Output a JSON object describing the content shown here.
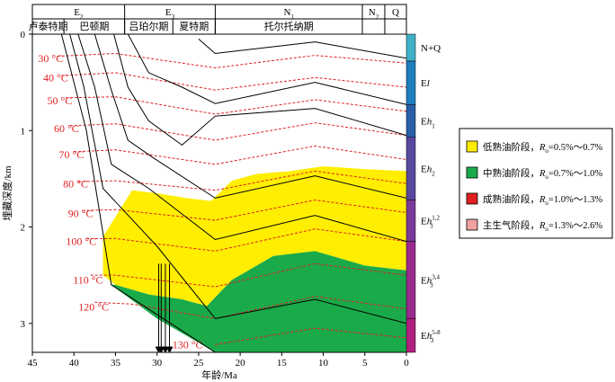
{
  "chart_data": {
    "type": "burial-history",
    "xlabel": "年龄/Ma",
    "ylabel": "埋藏深度/km",
    "xlim": [
      45,
      0
    ],
    "ylim": [
      0,
      3.3
    ],
    "x_ticks": [
      "45",
      "40",
      "35",
      "30",
      "25",
      "20",
      "15",
      "10",
      "5",
      "0"
    ],
    "y_ticks": [
      "0",
      "1",
      "2",
      "3"
    ],
    "epochs": [
      {
        "label": "E2",
        "base": "E",
        "sub": "2",
        "from": 45,
        "to": 33.9
      },
      {
        "label": "E3",
        "base": "E",
        "sub": "3",
        "from": 33.9,
        "to": 23.0
      },
      {
        "label": "N1",
        "base": "N",
        "sub": "1",
        "from": 23.0,
        "to": 5.3
      },
      {
        "label": "N2",
        "base": "N",
        "sub": "2",
        "from": 5.3,
        "to": 2.6
      },
      {
        "label": "Q",
        "base": "Q",
        "sub": "",
        "from": 2.6,
        "to": 0
      }
    ],
    "stages": [
      {
        "label": "卢泰特期",
        "from": 45,
        "to": 41.2
      },
      {
        "label": "巴顿期",
        "from": 41.2,
        "to": 33.9
      },
      {
        "label": "吕珀尔期",
        "from": 33.9,
        "to": 28.1
      },
      {
        "label": "夏特期",
        "from": 28.1,
        "to": 23.0
      },
      {
        "label": "托尔托纳期",
        "from": 23.0,
        "to": 5.3
      }
    ],
    "burial_curves": [
      [
        [
          41.5,
          0
        ],
        [
          38.5,
          1.0
        ],
        [
          35.5,
          2.6
        ],
        [
          23,
          3.3
        ]
      ],
      [
        [
          40.5,
          0
        ],
        [
          38.8,
          0.55
        ],
        [
          36.5,
          1.6
        ],
        [
          30,
          2.2
        ],
        [
          23,
          2.95
        ],
        [
          11,
          2.75
        ],
        [
          0,
          3.0
        ]
      ],
      [
        [
          39.5,
          0
        ],
        [
          37.5,
          0.55
        ],
        [
          35.5,
          1.35
        ],
        [
          31,
          1.6
        ],
        [
          23,
          2.13
        ],
        [
          11,
          1.88
        ],
        [
          0,
          2.15
        ]
      ],
      [
        [
          37.5,
          0
        ],
        [
          35.5,
          0.58
        ],
        [
          33.5,
          1.1
        ],
        [
          30.5,
          1.28
        ],
        [
          23,
          1.7
        ],
        [
          11,
          1.47
        ],
        [
          0,
          1.7
        ]
      ],
      [
        [
          35.2,
          0
        ],
        [
          33.5,
          0.55
        ],
        [
          31,
          0.9
        ],
        [
          27,
          1.15
        ],
        [
          23,
          0.85
        ],
        [
          11,
          0.77
        ],
        [
          0,
          1.05
        ]
      ],
      [
        [
          33.5,
          0
        ],
        [
          31,
          0.4
        ],
        [
          27,
          0.55
        ],
        [
          23,
          0.72
        ],
        [
          11,
          0.5
        ],
        [
          0,
          0.73
        ]
      ],
      [
        [
          25,
          0.05
        ],
        [
          23,
          0.2
        ],
        [
          11,
          0.08
        ],
        [
          0,
          0.25
        ]
      ]
    ],
    "isotherms": [
      {
        "label": "30 °C",
        "points": [
          [
            42,
            0.23
          ],
          [
            35,
            0.2
          ],
          [
            23,
            0.35
          ],
          [
            11,
            0.22
          ],
          [
            0,
            0.3
          ]
        ]
      },
      {
        "label": "40 °C",
        "points": [
          [
            41.5,
            0.43
          ],
          [
            35,
            0.4
          ],
          [
            23,
            0.58
          ],
          [
            11,
            0.45
          ],
          [
            0,
            0.55
          ]
        ]
      },
      {
        "label": "50 °C",
        "points": [
          [
            41,
            0.66
          ],
          [
            35,
            0.65
          ],
          [
            23,
            0.83
          ],
          [
            11,
            0.68
          ],
          [
            0,
            0.8
          ]
        ]
      },
      {
        "label": "60 °C",
        "points": [
          [
            40.5,
            0.95
          ],
          [
            35,
            0.93
          ],
          [
            23,
            1.1
          ],
          [
            11,
            0.92
          ],
          [
            0,
            1.05
          ]
        ]
      },
      {
        "label": "70 °C",
        "points": [
          [
            40,
            1.22
          ],
          [
            35,
            1.2
          ],
          [
            23,
            1.35
          ],
          [
            11,
            1.16
          ],
          [
            0,
            1.3
          ]
        ]
      },
      {
        "label": "80 °C",
        "points": [
          [
            39.5,
            1.53
          ],
          [
            35,
            1.52
          ],
          [
            23,
            1.62
          ],
          [
            11,
            1.42
          ],
          [
            0,
            1.55
          ]
        ]
      },
      {
        "label": "90 °C",
        "points": [
          [
            39,
            1.83
          ],
          [
            35,
            1.82
          ],
          [
            23,
            1.93
          ],
          [
            11,
            1.72
          ],
          [
            0,
            1.85
          ]
        ]
      },
      {
        "label": "100 °C",
        "points": [
          [
            38.5,
            2.12
          ],
          [
            35,
            2.12
          ],
          [
            23,
            2.25
          ],
          [
            11,
            2.02
          ],
          [
            0,
            2.15
          ]
        ]
      },
      {
        "label": "110 °C",
        "points": [
          [
            38,
            2.5
          ],
          [
            35,
            2.5
          ],
          [
            23,
            2.62
          ],
          [
            11,
            2.38
          ],
          [
            0,
            2.5
          ]
        ]
      },
      {
        "label": "120 °C",
        "points": [
          [
            37.5,
            2.78
          ],
          [
            33,
            2.8
          ],
          [
            23,
            2.95
          ],
          [
            11,
            2.72
          ],
          [
            0,
            2.85
          ]
        ]
      },
      {
        "label": "130 °C",
        "points": [
          [
            23,
            3.22
          ],
          [
            11,
            3.05
          ],
          [
            0,
            3.15
          ]
        ]
      }
    ],
    "zones": [
      {
        "label": "低熟油阶段",
        "ro": "0.5%～0.7%",
        "color": "#ffee00"
      },
      {
        "label": "中熟油阶段",
        "ro": "0.7%～1.0%",
        "color": "#1aaa4a"
      },
      {
        "label": "成熟油阶段",
        "ro": "1.0%～1.3%",
        "color": "#e02020"
      },
      {
        "label": "主生气阶段",
        "ro": "1.3%～2.6%",
        "color": "#f0a0a0"
      }
    ],
    "ro_symbol": "R",
    "ro_sub": "o",
    "ro_eq": "=",
    "strat_column": [
      {
        "base": "N+Q",
        "sub": "",
        "sup": "",
        "from": 0,
        "to": 0.28,
        "color": "#3fb0c8"
      },
      {
        "base": "E",
        "italic": "l",
        "sub": "",
        "sup": "",
        "from": 0.28,
        "to": 0.73,
        "color": "#1e7fbf"
      },
      {
        "base": "E",
        "italic": "h",
        "sub": "1",
        "sup": "",
        "from": 0.73,
        "to": 1.07,
        "color": "#2a5fa8"
      },
      {
        "base": "E",
        "italic": "h",
        "sub": "2",
        "sup": "",
        "from": 1.07,
        "to": 1.72,
        "color": "#5848a0"
      },
      {
        "base": "E",
        "italic": "h",
        "sub": "3",
        "sup": "1,2",
        "from": 1.72,
        "to": 2.15,
        "color": "#7a3a9a"
      },
      {
        "base": "E",
        "italic": "h",
        "sub": "3",
        "sup": "3,4",
        "from": 2.15,
        "to": 2.95,
        "color": "#9b2a8f"
      },
      {
        "base": "E",
        "italic": "h",
        "sub": "3",
        "sup": "5-8",
        "from": 2.95,
        "to": 3.3,
        "color": "#b02080"
      }
    ],
    "colors": {
      "burial": "#000000",
      "isotherm": "#e02020",
      "low_mature": "#ffee00",
      "mid_mature": "#1aaa4a"
    }
  }
}
